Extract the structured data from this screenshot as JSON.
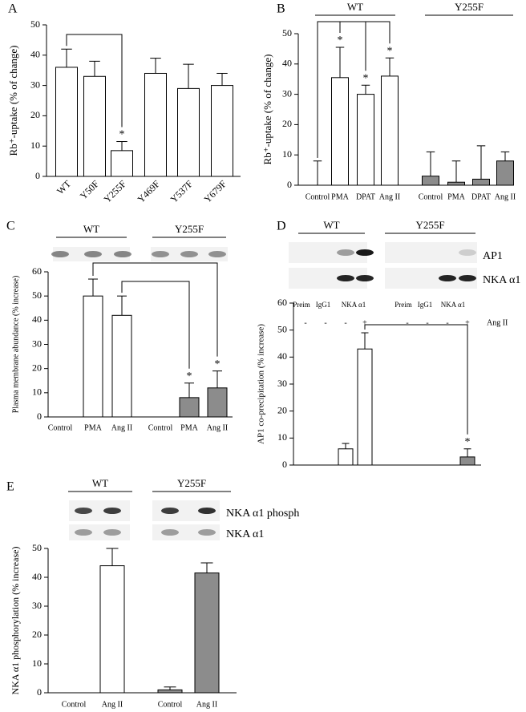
{
  "chart_data": [
    {
      "panel": "A",
      "type": "bar",
      "ylabel": "Rb⁺-uptake (% of change)",
      "categories": [
        "WT",
        "Y50F",
        "Y255F",
        "Y469F",
        "Y537F",
        "Y679F"
      ],
      "ylim": [
        0,
        50
      ],
      "yticks": [
        0,
        10,
        20,
        30,
        40,
        50
      ],
      "series": [
        {
          "color": "#ffffff",
          "values": [
            36,
            33,
            8.5,
            34,
            29,
            30
          ],
          "errors": [
            6,
            5,
            3,
            5,
            8,
            4
          ],
          "significance": [
            null,
            null,
            "*",
            null,
            null,
            null
          ]
        }
      ]
    },
    {
      "panel": "B",
      "type": "bar",
      "ylabel": "Rb⁺-uptake (% of change)",
      "categories": [
        "Control",
        "PMA",
        "DPAT",
        "Ang II",
        "Control",
        "PMA",
        "DPAT",
        "Ang II"
      ],
      "ylim": [
        0,
        50
      ],
      "yticks": [
        0,
        10,
        20,
        30,
        40,
        50
      ],
      "series": [
        {
          "name": "WT",
          "color": "#ffffff",
          "values": [
            0,
            35.5,
            30,
            36,
            null,
            null,
            null,
            null
          ],
          "errors": [
            8,
            10,
            3,
            6,
            null,
            null,
            null,
            null
          ],
          "significance": [
            null,
            "*",
            "*",
            "*",
            null,
            null,
            null,
            null
          ]
        },
        {
          "name": "Y255F",
          "color": "#8c8c8c",
          "values": [
            null,
            null,
            null,
            null,
            3,
            1,
            2,
            8
          ],
          "errors": [
            null,
            null,
            null,
            null,
            8,
            7,
            11,
            3
          ]
        }
      ]
    },
    {
      "panel": "C",
      "type": "bar",
      "ylabel": "Plasma membrane abundance (% increase)",
      "categories": [
        "Control",
        "PMA",
        "Ang II",
        "Control",
        "PMA",
        "Ang II"
      ],
      "ylim": [
        0,
        60
      ],
      "yticks": [
        0,
        10,
        20,
        30,
        40,
        50,
        60
      ],
      "series": [
        {
          "name": "WT",
          "color": "#ffffff",
          "values": [
            0,
            50,
            42,
            null,
            null,
            null
          ],
          "errors": [
            0,
            7,
            8,
            null,
            null,
            null
          ]
        },
        {
          "name": "Y255F",
          "color": "#8c8c8c",
          "values": [
            null,
            null,
            null,
            0,
            8,
            12
          ],
          "errors": [
            null,
            null,
            null,
            0,
            6,
            7
          ],
          "significance": [
            null,
            null,
            null,
            null,
            "*",
            "*"
          ]
        }
      ]
    },
    {
      "panel": "D",
      "type": "bar",
      "ylabel": "AP1 co-precipitation (% increase)",
      "blots": [
        "AP1",
        "NKA α1"
      ],
      "lanes": [
        "Preim",
        "IgG1",
        "NKA α1",
        "Preim",
        "IgG1",
        "NKA α1"
      ],
      "treatment_label": "Ang II",
      "categories": [
        "-",
        "-",
        "-",
        "+",
        "-",
        "-",
        "-",
        "+"
      ],
      "ylim": [
        0,
        60
      ],
      "yticks": [
        0,
        10,
        20,
        30,
        40,
        50,
        60
      ],
      "series": [
        {
          "name": "WT",
          "color": "#ffffff",
          "values": [
            0,
            0,
            6,
            43,
            null,
            null,
            null,
            null
          ],
          "errors": [
            null,
            null,
            2,
            6,
            null,
            null,
            null,
            null
          ]
        },
        {
          "name": "Y255F",
          "color": "#8c8c8c",
          "values": [
            null,
            null,
            null,
            null,
            0,
            0,
            0,
            3
          ],
          "errors": [
            null,
            null,
            null,
            null,
            null,
            null,
            null,
            3
          ],
          "significance": [
            null,
            null,
            null,
            null,
            null,
            null,
            null,
            "*"
          ]
        }
      ]
    },
    {
      "panel": "E",
      "type": "bar",
      "ylabel": "NKA α1 phosphorylation (% increase)",
      "blots": [
        "NKA α1 phosph",
        "NKA α1"
      ],
      "categories": [
        "Control",
        "Ang II",
        "Control",
        "Ang II"
      ],
      "ylim": [
        0,
        50
      ],
      "yticks": [
        0,
        10,
        20,
        30,
        40,
        50
      ],
      "series": [
        {
          "name": "WT",
          "color": "#ffffff",
          "values": [
            0,
            44,
            null,
            null
          ],
          "errors": [
            0,
            6,
            null,
            null
          ]
        },
        {
          "name": "Y255F",
          "color": "#8c8c8c",
          "values": [
            null,
            null,
            1,
            41.5
          ],
          "errors": [
            null,
            null,
            1,
            3.5
          ]
        }
      ]
    }
  ]
}
